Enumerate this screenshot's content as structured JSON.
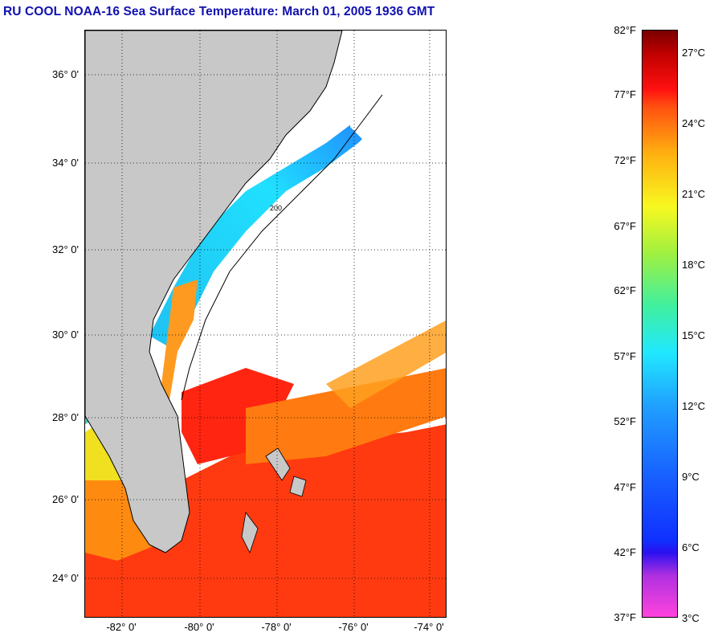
{
  "title": "RU COOL  NOAA-16  Sea Surface Temperature:  March 01, 2005 1936 GMT",
  "map": {
    "lat_labels": [
      "36° 0'",
      "34° 0'",
      "32° 0'",
      "30° 0'",
      "28° 0'",
      "26° 0'",
      "24° 0'"
    ],
    "lon_labels": [
      "-82° 0'",
      "-80° 0'",
      "-78° 0'",
      "-76° 0'",
      "-74° 0'"
    ],
    "land_color": "#c8c8c8",
    "cloud_color": "#ffffff",
    "contour_color": "#000000",
    "depth_contour_label": "200"
  },
  "colorbar": {
    "fahrenheit_labels": [
      "82°F",
      "77°F",
      "72°F",
      "67°F",
      "62°F",
      "57°F",
      "52°F",
      "47°F",
      "42°F",
      "37°F"
    ],
    "celsius_labels": [
      "27°C",
      "24°C",
      "21°C",
      "18°C",
      "15°C",
      "12°C",
      "9°C",
      "6°C",
      "3°C"
    ],
    "range_f": [
      37,
      82
    ],
    "range_c": [
      3,
      28
    ],
    "colors_low_to_high": [
      "#ff44dd",
      "#2a10f0",
      "#1860ff",
      "#20e8ff",
      "#a0f040",
      "#f8f820",
      "#ffb010",
      "#ff1010",
      "#7a0000"
    ]
  }
}
